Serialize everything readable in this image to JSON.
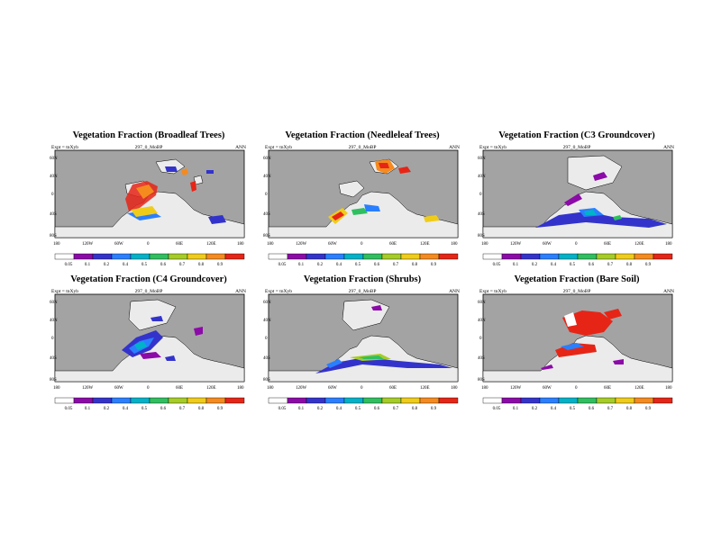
{
  "common": {
    "expt_label": "Expt = tnXyb",
    "case_label": "297_0_MoBP",
    "season_label": "ANN",
    "lat_ticks": [
      "60N",
      "40N",
      "0",
      "40S",
      "80S"
    ],
    "colors": [
      "#ffffff",
      "#8c0aa8",
      "#3333cc",
      "#2a7fff",
      "#00b3c8",
      "#2fbf5f",
      "#a6cc26",
      "#f0cc1a",
      "#f58a1f",
      "#e62517"
    ],
    "land_color": "#ebebeb",
    "ocean_color": "#a3a3a3"
  },
  "panels": [
    {
      "title": "Vegetation Fraction (Broadleaf Trees)",
      "lon_ticks": [
        "180",
        "120W",
        "60W",
        "0",
        "60E",
        "120E",
        "180"
      ],
      "colorbar_labels": [
        "0.05",
        "0.1",
        "0.2",
        "0.4",
        "0.5",
        "0.6",
        "0.7",
        "0.8",
        "0.9"
      ]
    },
    {
      "title": "Vegetation Fraction (Needleleaf Trees)",
      "lon_ticks": [
        "180",
        "120W",
        "60W",
        "0",
        "60E",
        "120E",
        "180"
      ],
      "colorbar_labels": [
        "0.05",
        "0.1",
        "0.2",
        "0.4",
        "0.5",
        "0.6",
        "0.7",
        "0.8",
        "0.9"
      ]
    },
    {
      "title": "Vegetation Fraction (C3 Groundcover)",
      "lon_ticks": [
        "180",
        "120W",
        "60W",
        "0",
        "60E",
        "120E",
        "180"
      ],
      "colorbar_labels": [
        "0.05",
        "0.1",
        "0.2",
        "0.4",
        "0.5",
        "0.6",
        "0.7",
        "0.8",
        "0.9"
      ]
    },
    {
      "title": "Vegetation Fraction (C4 Groundcover)",
      "lon_ticks": [
        "180",
        "120W",
        "60W",
        "0",
        "60E",
        "120E",
        "180"
      ],
      "colorbar_labels": [
        "0.05",
        "0.1",
        "0.2",
        "0.4",
        "0.5",
        "0.6",
        "0.7",
        "0.8",
        "0.9"
      ]
    },
    {
      "title": "Vegetation Fraction (Shrubs)",
      "lon_ticks": [
        "180",
        "120W",
        "60W",
        "0",
        "60E",
        "120E",
        "180"
      ],
      "colorbar_labels": [
        "0.05",
        "0.1",
        "0.2",
        "0.4",
        "0.5",
        "0.6",
        "0.7",
        "0.8",
        "0.9"
      ]
    },
    {
      "title": "Vegetation Fraction (Bare Soil)",
      "lon_ticks": [
        "180",
        "120W",
        "60W",
        "0",
        "60E",
        "120E",
        "180"
      ],
      "colorbar_labels": [
        "0.05",
        "0.1",
        "0.2",
        "0.4",
        "0.5",
        "0.6",
        "0.7",
        "0.8",
        "0.9"
      ]
    }
  ]
}
